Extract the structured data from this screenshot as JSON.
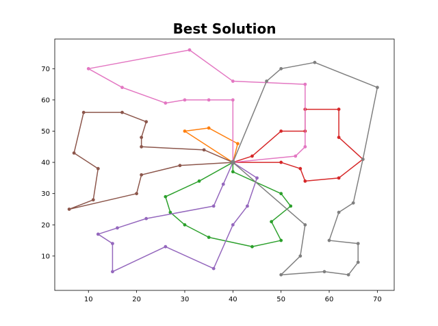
{
  "chart_data": {
    "type": "line",
    "title": "Best Solution",
    "xlabel": "",
    "ylabel": "",
    "xlim": [
      3,
      73.5
    ],
    "ylim": [
      -1,
      79.5
    ],
    "xticks": [
      10,
      20,
      30,
      40,
      50,
      60,
      70
    ],
    "yticks": [
      10,
      20,
      30,
      40,
      50,
      60,
      70
    ],
    "grid": false,
    "depot": [
      40,
      40
    ],
    "series": [
      {
        "color": "#2ca02c",
        "x": [
          40,
          40,
          50,
          52,
          48,
          50,
          44,
          35,
          30,
          27,
          26,
          33,
          40
        ],
        "y": [
          40,
          37,
          30,
          26,
          21,
          15,
          13,
          16,
          20,
          24,
          29,
          34,
          40
        ]
      },
      {
        "color": "#ff7f0e",
        "x": [
          40,
          41,
          35,
          30,
          40
        ],
        "y": [
          40,
          46,
          51,
          50,
          40
        ]
      },
      {
        "color": "#d62728",
        "x": [
          40,
          44,
          50,
          55,
          55,
          62,
          62,
          67,
          62,
          55,
          54,
          50,
          40
        ],
        "y": [
          40,
          42,
          50,
          50,
          57,
          57,
          48,
          41,
          35,
          34,
          38,
          40,
          40
        ]
      },
      {
        "color": "#9467bd",
        "x": [
          40,
          45,
          43,
          40,
          36,
          26,
          15,
          15,
          12,
          16,
          22,
          36,
          38,
          40
        ],
        "y": [
          40,
          35,
          26,
          20,
          6,
          13,
          5,
          14,
          17,
          19,
          22,
          26,
          33,
          40
        ]
      },
      {
        "color": "#8c564b",
        "x": [
          40,
          34,
          21,
          21,
          22,
          17,
          9,
          7,
          12,
          11,
          6,
          20,
          21,
          29,
          40
        ],
        "y": [
          40,
          44,
          45,
          48,
          53,
          56,
          56,
          43,
          38,
          28,
          25,
          30,
          36,
          39,
          40
        ]
      },
      {
        "color": "#e377c2",
        "x": [
          40,
          40,
          35,
          30,
          26,
          17,
          10,
          31,
          40,
          55,
          55,
          53,
          40
        ],
        "y": [
          40,
          60,
          60,
          60,
          59,
          64,
          70,
          76,
          66,
          65,
          45,
          42,
          40
        ]
      },
      {
        "color": "#7f7f7f",
        "x": [
          40,
          47,
          50,
          57,
          70,
          67,
          65,
          62,
          60,
          66,
          66,
          64,
          59,
          50,
          54,
          55,
          40
        ],
        "y": [
          40,
          66,
          70,
          72,
          64,
          41,
          27,
          24,
          15,
          14,
          8,
          4,
          5,
          4,
          10,
          20,
          40
        ]
      }
    ]
  }
}
